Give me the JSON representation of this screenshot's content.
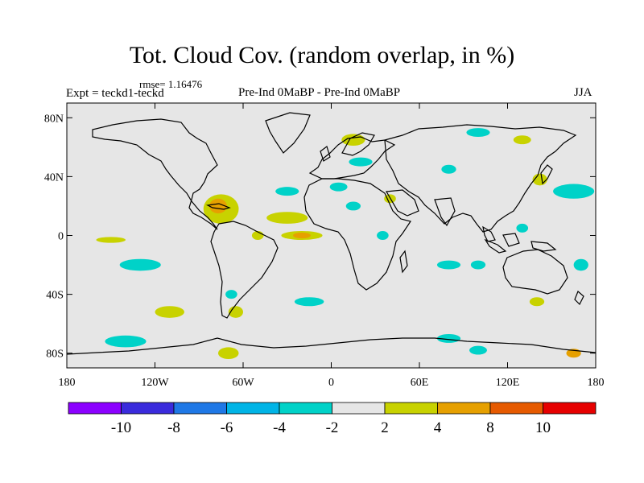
{
  "title": "Tot. Cloud Cov. (random overlap, in %)",
  "rmse": "rmse= 1.16476",
  "expt": "Expt = teckd1-teckd",
  "comparison": "Pre-Ind 0MaBP - Pre-Ind 0MaBP",
  "season": "JJA",
  "colors": {
    "background": "#e6e6e6",
    "coast": "#000000"
  },
  "chart_data": {
    "type": "heatmap",
    "title": "Tot. Cloud Cov. (random overlap, in %)",
    "xlim": [
      -180,
      180
    ],
    "ylim": [
      -90,
      90
    ],
    "lat_ticks": [
      {
        "value": 80,
        "label": "80N"
      },
      {
        "value": 40,
        "label": "40N"
      },
      {
        "value": 0,
        "label": "0"
      },
      {
        "value": -40,
        "label": "40S"
      },
      {
        "value": -80,
        "label": "80S"
      }
    ],
    "lon_ticks": [
      {
        "value": -180,
        "label": "180"
      },
      {
        "value": -120,
        "label": "120W"
      },
      {
        "value": -60,
        "label": "60W"
      },
      {
        "value": 0,
        "label": "0"
      },
      {
        "value": 60,
        "label": "60E"
      },
      {
        "value": 120,
        "label": "120E"
      },
      {
        "value": 180,
        "label": "180"
      }
    ],
    "colorbar": {
      "colors": [
        "#8b00ff",
        "#3a2bdc",
        "#1f78e6",
        "#00b4e6",
        "#00d2c8",
        "#e6e6e6",
        "#c8d200",
        "#e6a000",
        "#e65a00",
        "#e60000"
      ],
      "labels": [
        "-10",
        "-8",
        "-6",
        "-4",
        "-2",
        "2",
        "4",
        "8",
        "10"
      ]
    },
    "anomalies": [
      {
        "name": "caribbean-gulf",
        "lon": -75,
        "lat": 18,
        "rx": 12,
        "ry": 10,
        "color": "#c8d200"
      },
      {
        "name": "caribbean-core",
        "lon": -77,
        "lat": 20,
        "rx": 6,
        "ry": 5,
        "color": "#e6a000"
      },
      {
        "name": "tropical-atlantic",
        "lon": -30,
        "lat": 12,
        "rx": 14,
        "ry": 4,
        "color": "#c8d200"
      },
      {
        "name": "eq-atlantic",
        "lon": -20,
        "lat": 0,
        "rx": 14,
        "ry": 3,
        "color": "#c8d200"
      },
      {
        "name": "eq-atlantic-core",
        "lon": -20,
        "lat": 0,
        "rx": 6,
        "ry": 2,
        "color": "#e6a000"
      },
      {
        "name": "amazon",
        "lon": -50,
        "lat": 0,
        "rx": 4,
        "ry": 3,
        "color": "#c8d200"
      },
      {
        "name": "eq-east-pacific",
        "lon": -150,
        "lat": -3,
        "rx": 10,
        "ry": 2,
        "color": "#c8d200"
      },
      {
        "name": "south-pacific",
        "lon": -130,
        "lat": -20,
        "rx": 14,
        "ry": 4,
        "color": "#00d2c8"
      },
      {
        "name": "southern-ocean-pacific",
        "lon": -140,
        "lat": -72,
        "rx": 14,
        "ry": 4,
        "color": "#00d2c8"
      },
      {
        "name": "south-atlantic-mid",
        "lon": -110,
        "lat": -52,
        "rx": 10,
        "ry": 4,
        "color": "#c8d200"
      },
      {
        "name": "patagonia",
        "lon": -65,
        "lat": -52,
        "rx": 5,
        "ry": 4,
        "color": "#c8d200"
      },
      {
        "name": "south-america-coast",
        "lon": -68,
        "lat": -40,
        "rx": 4,
        "ry": 3,
        "color": "#00d2c8"
      },
      {
        "name": "drake-passage",
        "lon": -70,
        "lat": -80,
        "rx": 7,
        "ry": 4,
        "color": "#c8d200"
      },
      {
        "name": "south-atlantic",
        "lon": -15,
        "lat": -45,
        "rx": 10,
        "ry": 3,
        "color": "#00d2c8"
      },
      {
        "name": "north-atlantic",
        "lon": -30,
        "lat": 30,
        "rx": 8,
        "ry": 3,
        "color": "#00d2c8"
      },
      {
        "name": "sahara",
        "lon": 5,
        "lat": 33,
        "rx": 6,
        "ry": 3,
        "color": "#00d2c8"
      },
      {
        "name": "north-africa",
        "lon": 15,
        "lat": 20,
        "rx": 5,
        "ry": 3,
        "color": "#00d2c8"
      },
      {
        "name": "arabia",
        "lon": 40,
        "lat": 25,
        "rx": 4,
        "ry": 3,
        "color": "#c8d200"
      },
      {
        "name": "east-africa",
        "lon": 35,
        "lat": 0,
        "rx": 4,
        "ry": 3,
        "color": "#00d2c8"
      },
      {
        "name": "scandinavia",
        "lon": 15,
        "lat": 65,
        "rx": 8,
        "ry": 4,
        "color": "#c8d200"
      },
      {
        "name": "baltic",
        "lon": 20,
        "lat": 50,
        "rx": 8,
        "ry": 3,
        "color": "#00d2c8"
      },
      {
        "name": "central-asia",
        "lon": 80,
        "lat": 45,
        "rx": 5,
        "ry": 3,
        "color": "#00d2c8"
      },
      {
        "name": "siberia",
        "lon": 100,
        "lat": 70,
        "rx": 8,
        "ry": 3,
        "color": "#00d2c8"
      },
      {
        "name": "east-siberia",
        "lon": 130,
        "lat": 65,
        "rx": 6,
        "ry": 3,
        "color": "#c8d200"
      },
      {
        "name": "japan",
        "lon": 142,
        "lat": 38,
        "rx": 5,
        "ry": 4,
        "color": "#c8d200"
      },
      {
        "name": "north-pacific",
        "lon": 165,
        "lat": 30,
        "rx": 14,
        "ry": 5,
        "color": "#00d2c8"
      },
      {
        "name": "indian-ocean",
        "lon": 80,
        "lat": -20,
        "rx": 8,
        "ry": 3,
        "color": "#00d2c8"
      },
      {
        "name": "indian-south",
        "lon": 100,
        "lat": -20,
        "rx": 5,
        "ry": 3,
        "color": "#00d2c8"
      },
      {
        "name": "southern-indian",
        "lon": 80,
        "lat": -70,
        "rx": 8,
        "ry": 3,
        "color": "#00d2c8"
      },
      {
        "name": "south-indian-2",
        "lon": 100,
        "lat": -78,
        "rx": 6,
        "ry": 3,
        "color": "#00d2c8"
      },
      {
        "name": "indonesia",
        "lon": 130,
        "lat": 5,
        "rx": 4,
        "ry": 3,
        "color": "#00d2c8"
      },
      {
        "name": "australia-south",
        "lon": 140,
        "lat": -45,
        "rx": 5,
        "ry": 3,
        "color": "#c8d200"
      },
      {
        "name": "tasman",
        "lon": 170,
        "lat": -20,
        "rx": 5,
        "ry": 4,
        "color": "#00d2c8"
      },
      {
        "name": "southern-ocean-pacific-2",
        "lon": 165,
        "lat": -80,
        "rx": 5,
        "ry": 3,
        "color": "#e6a000"
      }
    ]
  }
}
